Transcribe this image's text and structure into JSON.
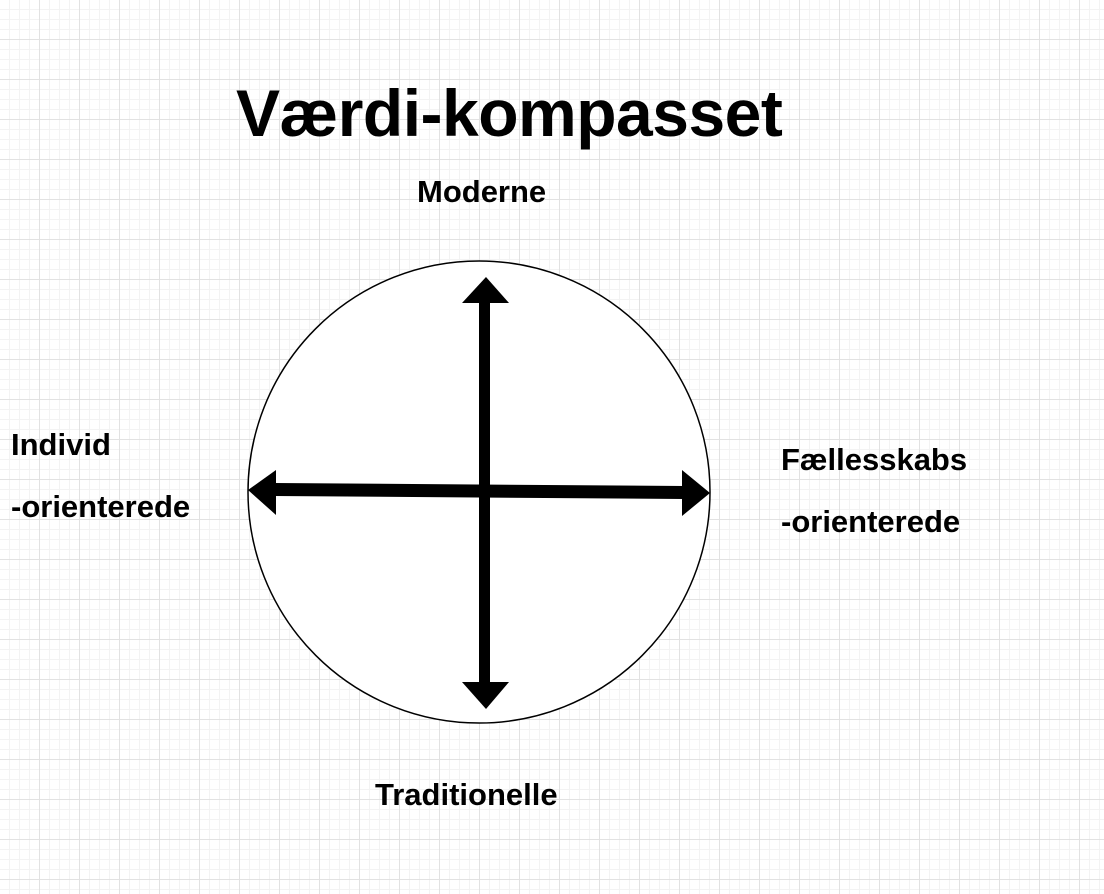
{
  "title": "Værdi-kompasset",
  "axes": {
    "top": "Moderne",
    "bottom": "Traditionelle",
    "left": {
      "line1": "Individ",
      "line2": "-orienterede"
    },
    "right": {
      "line1": "Fællesskabs",
      "line2": "-orienterede"
    }
  },
  "colors": {
    "background": "#ffffff",
    "grid_major": "#e2e2e2",
    "grid_minor": "#f3f3f3",
    "ink": "#000000",
    "circle_fill": "#ffffff"
  }
}
